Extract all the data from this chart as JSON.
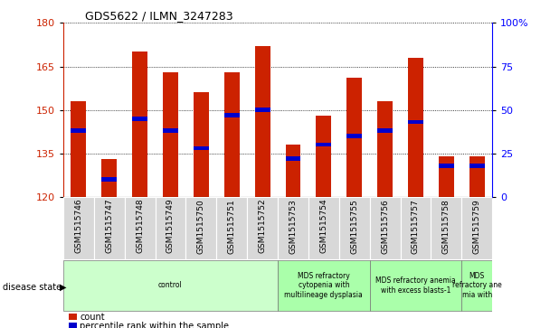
{
  "title": "GDS5622 / ILMN_3247283",
  "samples": [
    "GSM1515746",
    "GSM1515747",
    "GSM1515748",
    "GSM1515749",
    "GSM1515750",
    "GSM1515751",
    "GSM1515752",
    "GSM1515753",
    "GSM1515754",
    "GSM1515755",
    "GSM1515756",
    "GSM1515757",
    "GSM1515758",
    "GSM1515759"
  ],
  "counts": [
    153,
    133,
    170,
    163,
    156,
    163,
    172,
    138,
    148,
    161,
    153,
    168,
    134,
    134
  ],
  "percentile_ranks": [
    38,
    10,
    45,
    38,
    28,
    47,
    50,
    22,
    30,
    35,
    38,
    43,
    18,
    18
  ],
  "ymin": 120,
  "ymax": 180,
  "yticks_left": [
    120,
    135,
    150,
    165,
    180
  ],
  "yticks_right": [
    0,
    25,
    50,
    75,
    100
  ],
  "bar_color": "#cc2200",
  "percentile_color": "#0000cc",
  "disease_groups": [
    {
      "label": "control",
      "start": 0,
      "end": 7,
      "color": "#ccffcc"
    },
    {
      "label": "MDS refractory\ncytopenia with\nmultilineage dysplasia",
      "start": 7,
      "end": 10,
      "color": "#aaffaa"
    },
    {
      "label": "MDS refractory anemia\nwith excess blasts-1",
      "start": 10,
      "end": 13,
      "color": "#aaffaa"
    },
    {
      "label": "MDS\nrefractory ane\nmia with",
      "start": 13,
      "end": 14,
      "color": "#aaffaa"
    }
  ],
  "bar_width": 0.5
}
